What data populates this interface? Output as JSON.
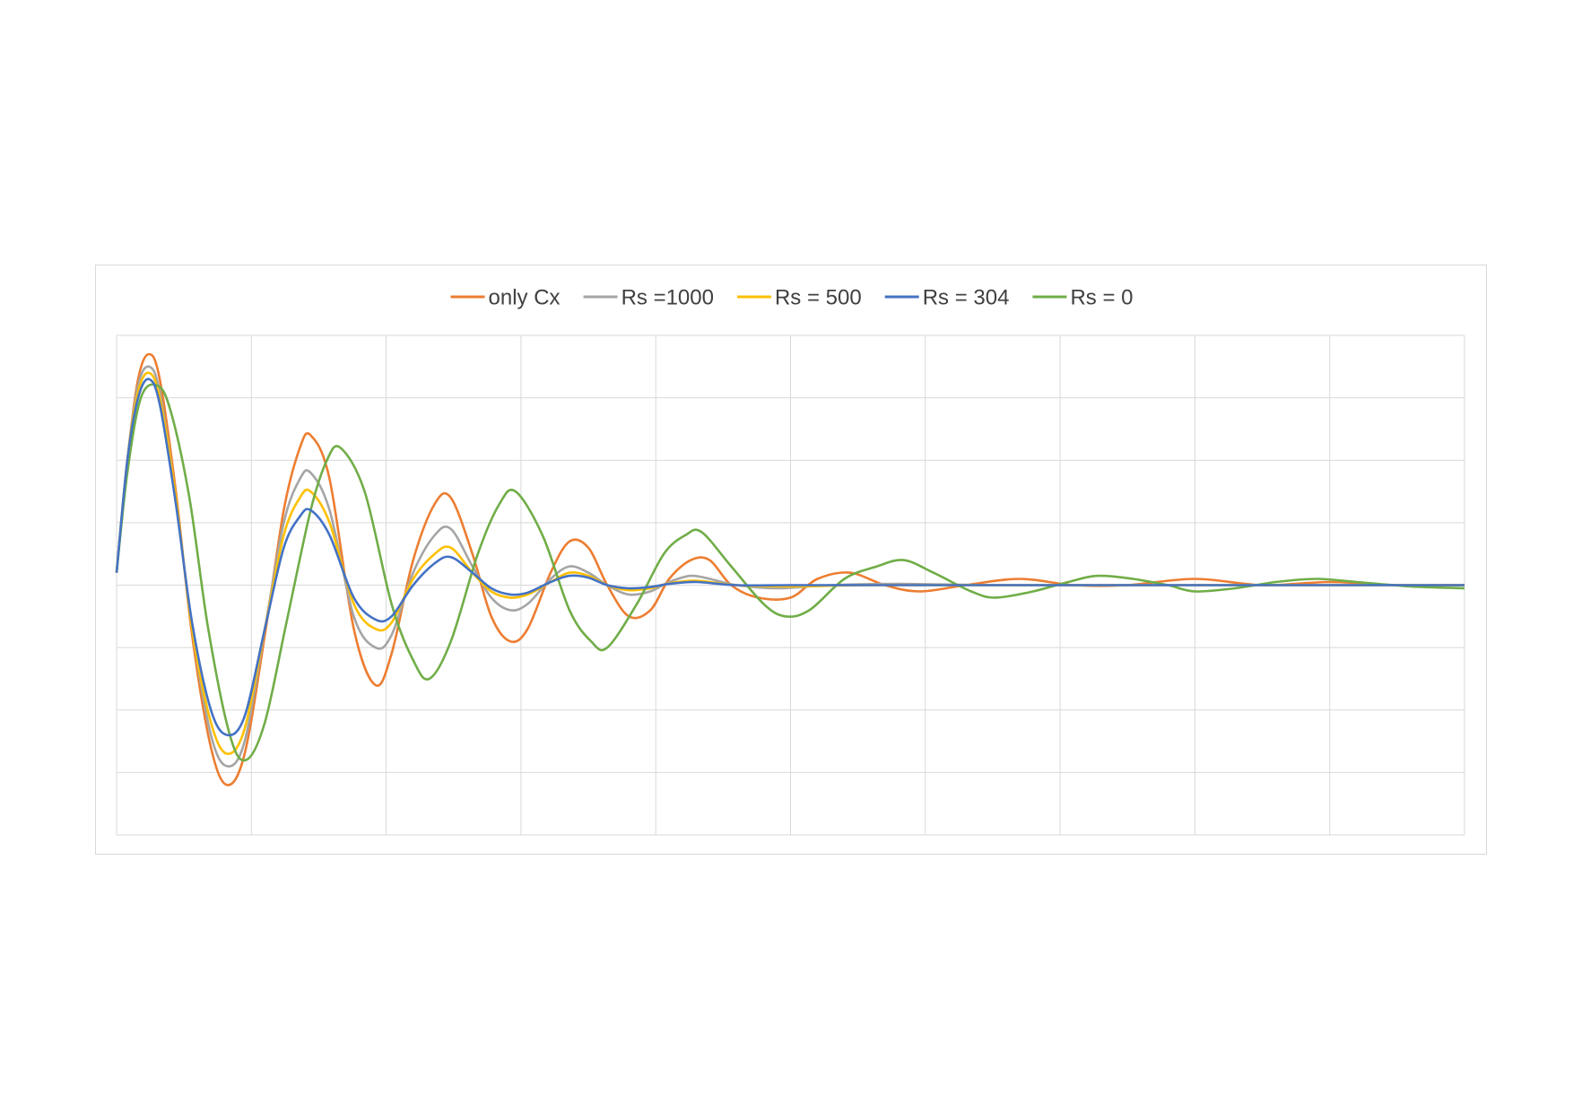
{
  "chart_data": {
    "type": "line",
    "title": "",
    "xlabel": "",
    "ylabel": "",
    "tick_labels_shown": false,
    "grid": true,
    "legend_position": "top-center",
    "x_range": [
      0,
      10
    ],
    "ylim": [
      -4,
      4
    ],
    "x_gridlines": [
      0,
      1,
      2,
      3,
      4,
      5,
      6,
      7,
      8,
      9,
      10
    ],
    "y_gridlines": [
      -4,
      -3,
      -2,
      -1,
      0,
      1,
      2,
      3,
      4
    ],
    "series": [
      {
        "name": "only Cx",
        "color": "#ED7D31",
        "points": [
          [
            0.0,
            0.2
          ],
          [
            0.08,
            2.0
          ],
          [
            0.16,
            3.3
          ],
          [
            0.24,
            3.7
          ],
          [
            0.32,
            3.3
          ],
          [
            0.44,
            1.5
          ],
          [
            0.56,
            -0.8
          ],
          [
            0.7,
            -2.6
          ],
          [
            0.82,
            -3.2
          ],
          [
            0.95,
            -2.7
          ],
          [
            1.1,
            -0.8
          ],
          [
            1.24,
            1.2
          ],
          [
            1.36,
            2.2
          ],
          [
            1.44,
            2.4
          ],
          [
            1.58,
            1.7
          ],
          [
            1.76,
            -0.7
          ],
          [
            1.92,
            -1.6
          ],
          [
            2.04,
            -1.1
          ],
          [
            2.2,
            0.4
          ],
          [
            2.36,
            1.3
          ],
          [
            2.48,
            1.4
          ],
          [
            2.64,
            0.5
          ],
          [
            2.78,
            -0.5
          ],
          [
            2.92,
            -0.9
          ],
          [
            3.05,
            -0.7
          ],
          [
            3.22,
            0.2
          ],
          [
            3.36,
            0.7
          ],
          [
            3.5,
            0.6
          ],
          [
            3.64,
            0.0
          ],
          [
            3.8,
            -0.5
          ],
          [
            3.96,
            -0.4
          ],
          [
            4.1,
            0.1
          ],
          [
            4.26,
            0.4
          ],
          [
            4.4,
            0.4
          ],
          [
            4.56,
            0.0
          ],
          [
            4.76,
            -0.2
          ],
          [
            5.0,
            -0.2
          ],
          [
            5.2,
            0.1
          ],
          [
            5.44,
            0.2
          ],
          [
            5.7,
            0.0
          ],
          [
            5.96,
            -0.1
          ],
          [
            6.3,
            0.0
          ],
          [
            6.7,
            0.1
          ],
          [
            7.1,
            0.0
          ],
          [
            7.5,
            0.0
          ],
          [
            8.0,
            0.1
          ],
          [
            8.5,
            0.0
          ],
          [
            9.0,
            0.05
          ],
          [
            9.5,
            0.0
          ],
          [
            10.0,
            0.0
          ]
        ]
      },
      {
        "name": "Rs =1000",
        "color": "#A5A5A5",
        "points": [
          [
            0.0,
            0.2
          ],
          [
            0.08,
            2.0
          ],
          [
            0.16,
            3.2
          ],
          [
            0.24,
            3.5
          ],
          [
            0.32,
            3.1
          ],
          [
            0.44,
            1.4
          ],
          [
            0.56,
            -0.7
          ],
          [
            0.7,
            -2.4
          ],
          [
            0.82,
            -2.9
          ],
          [
            0.95,
            -2.5
          ],
          [
            1.1,
            -0.7
          ],
          [
            1.24,
            1.0
          ],
          [
            1.36,
            1.7
          ],
          [
            1.44,
            1.8
          ],
          [
            1.58,
            1.2
          ],
          [
            1.76,
            -0.5
          ],
          [
            1.92,
            -1.0
          ],
          [
            2.04,
            -0.8
          ],
          [
            2.2,
            0.2
          ],
          [
            2.36,
            0.8
          ],
          [
            2.48,
            0.9
          ],
          [
            2.64,
            0.3
          ],
          [
            2.78,
            -0.2
          ],
          [
            2.92,
            -0.4
          ],
          [
            3.05,
            -0.3
          ],
          [
            3.22,
            0.1
          ],
          [
            3.36,
            0.3
          ],
          [
            3.5,
            0.2
          ],
          [
            3.64,
            0.0
          ],
          [
            3.8,
            -0.15
          ],
          [
            3.96,
            -0.1
          ],
          [
            4.1,
            0.05
          ],
          [
            4.26,
            0.15
          ],
          [
            4.4,
            0.1
          ],
          [
            4.6,
            0.0
          ],
          [
            4.9,
            -0.05
          ],
          [
            5.3,
            0.0
          ],
          [
            5.8,
            0.02
          ],
          [
            6.5,
            0.0
          ],
          [
            7.5,
            0.0
          ],
          [
            8.5,
            0.0
          ],
          [
            10.0,
            0.0
          ]
        ]
      },
      {
        "name": "Rs = 500",
        "color": "#FFC000",
        "points": [
          [
            0.0,
            0.2
          ],
          [
            0.08,
            2.0
          ],
          [
            0.16,
            3.1
          ],
          [
            0.24,
            3.4
          ],
          [
            0.32,
            3.0
          ],
          [
            0.44,
            1.4
          ],
          [
            0.56,
            -0.7
          ],
          [
            0.7,
            -2.2
          ],
          [
            0.82,
            -2.7
          ],
          [
            0.95,
            -2.3
          ],
          [
            1.1,
            -0.7
          ],
          [
            1.24,
            0.8
          ],
          [
            1.36,
            1.4
          ],
          [
            1.44,
            1.5
          ],
          [
            1.58,
            1.0
          ],
          [
            1.76,
            -0.3
          ],
          [
            1.92,
            -0.7
          ],
          [
            2.04,
            -0.6
          ],
          [
            2.2,
            0.1
          ],
          [
            2.36,
            0.5
          ],
          [
            2.48,
            0.6
          ],
          [
            2.64,
            0.2
          ],
          [
            2.78,
            -0.1
          ],
          [
            2.92,
            -0.2
          ],
          [
            3.05,
            -0.15
          ],
          [
            3.22,
            0.05
          ],
          [
            3.36,
            0.2
          ],
          [
            3.5,
            0.15
          ],
          [
            3.64,
            0.0
          ],
          [
            3.8,
            -0.08
          ],
          [
            3.96,
            -0.05
          ],
          [
            4.1,
            0.03
          ],
          [
            4.3,
            0.07
          ],
          [
            4.6,
            0.0
          ],
          [
            5.0,
            -0.02
          ],
          [
            5.6,
            0.0
          ],
          [
            6.5,
            0.0
          ],
          [
            7.5,
            0.0
          ],
          [
            8.5,
            0.0
          ],
          [
            10.0,
            0.0
          ]
        ]
      },
      {
        "name": "Rs = 304",
        "color": "#4472C4",
        "points": [
          [
            0.0,
            0.2
          ],
          [
            0.08,
            2.0
          ],
          [
            0.16,
            3.0
          ],
          [
            0.24,
            3.3
          ],
          [
            0.32,
            2.9
          ],
          [
            0.44,
            1.3
          ],
          [
            0.56,
            -0.6
          ],
          [
            0.7,
            -2.0
          ],
          [
            0.82,
            -2.4
          ],
          [
            0.95,
            -2.1
          ],
          [
            1.1,
            -0.7
          ],
          [
            1.24,
            0.6
          ],
          [
            1.36,
            1.1
          ],
          [
            1.44,
            1.2
          ],
          [
            1.58,
            0.8
          ],
          [
            1.76,
            -0.2
          ],
          [
            1.92,
            -0.55
          ],
          [
            2.04,
            -0.5
          ],
          [
            2.2,
            0.0
          ],
          [
            2.36,
            0.35
          ],
          [
            2.48,
            0.45
          ],
          [
            2.64,
            0.2
          ],
          [
            2.78,
            -0.05
          ],
          [
            2.92,
            -0.15
          ],
          [
            3.05,
            -0.12
          ],
          [
            3.22,
            0.05
          ],
          [
            3.36,
            0.15
          ],
          [
            3.5,
            0.12
          ],
          [
            3.64,
            0.0
          ],
          [
            3.8,
            -0.05
          ],
          [
            3.96,
            -0.03
          ],
          [
            4.1,
            0.02
          ],
          [
            4.3,
            0.05
          ],
          [
            4.6,
            0.0
          ],
          [
            5.0,
            0.0
          ],
          [
            5.6,
            0.0
          ],
          [
            6.5,
            0.0
          ],
          [
            7.5,
            0.0
          ],
          [
            8.5,
            0.0
          ],
          [
            10.0,
            0.0
          ]
        ]
      },
      {
        "name": "Rs = 0",
        "color": "#70AD47",
        "points": [
          [
            0.0,
            0.2
          ],
          [
            0.08,
            1.8
          ],
          [
            0.18,
            3.0
          ],
          [
            0.3,
            3.2
          ],
          [
            0.4,
            2.8
          ],
          [
            0.54,
            1.4
          ],
          [
            0.68,
            -0.7
          ],
          [
            0.84,
            -2.4
          ],
          [
            0.96,
            -2.8
          ],
          [
            1.1,
            -2.2
          ],
          [
            1.26,
            -0.6
          ],
          [
            1.44,
            1.2
          ],
          [
            1.56,
            2.0
          ],
          [
            1.66,
            2.2
          ],
          [
            1.84,
            1.5
          ],
          [
            2.04,
            -0.3
          ],
          [
            2.2,
            -1.2
          ],
          [
            2.32,
            -1.5
          ],
          [
            2.48,
            -0.9
          ],
          [
            2.68,
            0.5
          ],
          [
            2.84,
            1.3
          ],
          [
            2.96,
            1.5
          ],
          [
            3.16,
            0.8
          ],
          [
            3.36,
            -0.4
          ],
          [
            3.52,
            -0.9
          ],
          [
            3.64,
            -1.0
          ],
          [
            3.86,
            -0.3
          ],
          [
            4.06,
            0.5
          ],
          [
            4.22,
            0.8
          ],
          [
            4.34,
            0.85
          ],
          [
            4.56,
            0.3
          ],
          [
            4.8,
            -0.3
          ],
          [
            4.96,
            -0.5
          ],
          [
            5.14,
            -0.4
          ],
          [
            5.4,
            0.1
          ],
          [
            5.64,
            0.3
          ],
          [
            5.84,
            0.4
          ],
          [
            6.06,
            0.2
          ],
          [
            6.34,
            -0.1
          ],
          [
            6.52,
            -0.2
          ],
          [
            6.8,
            -0.1
          ],
          [
            7.06,
            0.05
          ],
          [
            7.28,
            0.15
          ],
          [
            7.54,
            0.1
          ],
          [
            7.8,
            0.0
          ],
          [
            8.0,
            -0.1
          ],
          [
            8.3,
            -0.05
          ],
          [
            8.6,
            0.05
          ],
          [
            8.9,
            0.1
          ],
          [
            9.2,
            0.05
          ],
          [
            9.6,
            -0.02
          ],
          [
            10.0,
            -0.05
          ]
        ]
      }
    ]
  }
}
